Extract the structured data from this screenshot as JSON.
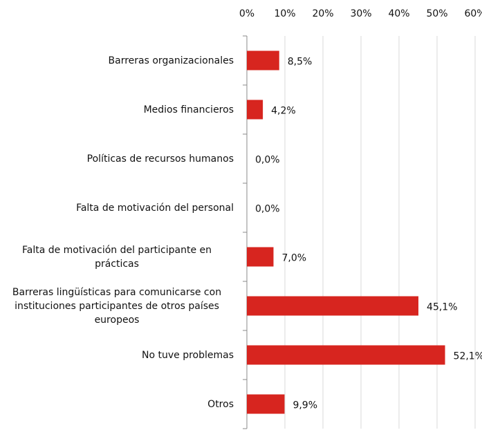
{
  "chart_data": {
    "type": "bar",
    "orientation": "horizontal",
    "categories": [
      "Barreras organizacionales",
      "Medios financieros",
      "Políticas de recursos humanos",
      "Falta de motivación del personal",
      "Falta de motivación del participante en prácticas",
      "Barreras lingüísticas para comunicarse con instituciones participantes de otros países europeos",
      "No tuve problemas",
      "Otros"
    ],
    "values": [
      8.5,
      4.2,
      0.0,
      0.0,
      7.0,
      45.1,
      52.1,
      9.9
    ],
    "value_labels": [
      "8,5%",
      "4,2%",
      "0,0%",
      "0,0%",
      "7,0%",
      "45,1%",
      "52,1%",
      "9,9%"
    ],
    "color": "#d7251f",
    "xlim": [
      0,
      60
    ],
    "xticks": [
      {
        "value": 0,
        "label": "0%"
      },
      {
        "value": 10,
        "label": "10%"
      },
      {
        "value": 20,
        "label": "20%"
      },
      {
        "value": 30,
        "label": "30%"
      },
      {
        "value": 40,
        "label": "40%"
      },
      {
        "value": 50,
        "label": "50%"
      },
      {
        "value": 60,
        "label": "60%"
      }
    ],
    "grid": true
  }
}
